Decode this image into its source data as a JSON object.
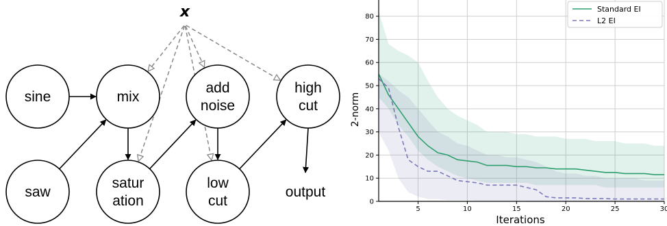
{
  "diagram": {
    "input_label": "x",
    "output_label": "output",
    "nodes": [
      {
        "id": "sine",
        "lines": [
          "sine"
        ]
      },
      {
        "id": "mix",
        "lines": [
          "mix"
        ]
      },
      {
        "id": "add-noise",
        "lines": [
          "add",
          "noise"
        ]
      },
      {
        "id": "high-cut",
        "lines": [
          "high",
          "cut"
        ]
      },
      {
        "id": "saw",
        "lines": [
          "saw"
        ]
      },
      {
        "id": "saturation",
        "lines": [
          "satur",
          "ation"
        ]
      },
      {
        "id": "low-cut",
        "lines": [
          "low",
          "cut"
        ]
      }
    ],
    "edges": [
      {
        "from": "sine",
        "to": "mix"
      },
      {
        "from": "saw",
        "to": "mix"
      },
      {
        "from": "mix",
        "to": "saturation"
      },
      {
        "from": "saturation",
        "to": "add-noise"
      },
      {
        "from": "add-noise",
        "to": "low-cut"
      },
      {
        "from": "low-cut",
        "to": "high-cut"
      },
      {
        "from": "high-cut",
        "to": "output"
      }
    ],
    "control_edges": [
      "mix",
      "saturation",
      "add-noise",
      "low-cut",
      "high-cut"
    ]
  },
  "chart_data": {
    "type": "line",
    "xlabel": "Iterations",
    "ylabel": "2-norm",
    "xlim": [
      1,
      30
    ],
    "ylim": [
      0,
      87
    ],
    "x_ticks": [
      5,
      10,
      15,
      20,
      25,
      30
    ],
    "y_ticks": [
      0,
      10,
      20,
      30,
      40,
      50,
      60,
      70,
      80
    ],
    "grid": true,
    "legend_position": "top-right",
    "x": [
      1,
      2,
      3,
      4,
      5,
      6,
      7,
      8,
      9,
      10,
      11,
      12,
      13,
      14,
      15,
      16,
      17,
      18,
      19,
      20,
      21,
      22,
      23,
      24,
      25,
      26,
      27,
      28,
      29,
      30
    ],
    "series": [
      {
        "name": "Standard EI",
        "color": "#2e9e6e",
        "dash": "solid",
        "values": [
          55,
          46,
          40,
          34,
          28,
          24,
          21,
          20,
          18,
          17.5,
          17,
          15.5,
          15.5,
          15.5,
          15,
          15,
          14.5,
          14.5,
          14,
          14,
          14,
          13.5,
          13,
          12.5,
          12.5,
          12,
          12,
          12,
          11.5,
          11.5
        ],
        "band_upper": [
          82,
          68,
          65,
          63,
          60,
          52,
          45,
          40,
          37,
          35,
          33,
          30,
          30,
          30,
          29,
          29,
          28,
          28,
          28,
          27,
          27,
          27,
          26,
          26,
          26,
          25,
          25,
          25,
          24,
          24
        ],
        "band_lower": [
          45,
          40,
          33,
          28,
          22,
          18,
          15,
          13,
          11,
          10,
          9,
          8,
          8,
          8,
          8,
          8,
          7,
          7,
          7,
          7,
          7,
          7,
          7,
          6,
          6,
          6,
          6,
          6,
          6,
          6
        ]
      },
      {
        "name": "L2 EI",
        "color": "#7a78b8",
        "dash": "dashed",
        "values": [
          53,
          49,
          32,
          18,
          15,
          13,
          13,
          11,
          9,
          8.5,
          8,
          7,
          7,
          7,
          7,
          6,
          5,
          2,
          1.5,
          1.5,
          1.5,
          1.2,
          1.2,
          1.2,
          1,
          1,
          1,
          1,
          1,
          1
        ],
        "band_upper": [
          55,
          52,
          48,
          45,
          40,
          35,
          30,
          28,
          25,
          24,
          22,
          20,
          20,
          19,
          19,
          18,
          17,
          15,
          13,
          12,
          12,
          11,
          11,
          10,
          10,
          10,
          10,
          9,
          9,
          9
        ],
        "band_lower": [
          30,
          22,
          10,
          4,
          2,
          1,
          1,
          0.5,
          0.5,
          0.5,
          0.2,
          0.2,
          0.2,
          0.2,
          0.2,
          0.2,
          0.1,
          0,
          0,
          0,
          0,
          0,
          0,
          0,
          0,
          0,
          0,
          0,
          0,
          0
        ]
      }
    ]
  }
}
